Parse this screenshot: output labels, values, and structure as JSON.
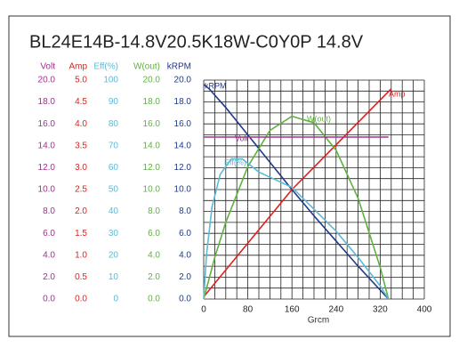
{
  "chart_data": {
    "type": "line",
    "title": "BL24E14B-14.8V20.5K18W-C0Y0P   14.8V",
    "x_label": "Grcm",
    "xlim": [
      0,
      400
    ],
    "xticks": [
      0,
      80,
      160,
      240,
      320,
      400
    ],
    "xgrid": [
      0,
      20,
      40,
      60,
      80,
      100,
      120,
      140,
      160,
      180,
      200,
      220,
      240,
      260,
      280,
      300,
      320,
      340,
      360,
      380,
      400
    ],
    "ygrid": [
      0,
      1,
      2,
      3,
      4,
      5,
      6,
      7,
      8,
      9,
      10,
      11,
      12,
      13,
      14,
      15,
      16,
      17,
      18,
      19,
      20
    ],
    "axes": [
      {
        "label": "Volt",
        "color": "#a0308f",
        "ylim": [
          0,
          20
        ],
        "yticks": [
          {
            "value": 0,
            "label": "0.0"
          },
          {
            "value": 2,
            "label": "2.0"
          },
          {
            "value": 4,
            "label": "4.0"
          },
          {
            "value": 6,
            "label": "6.0"
          },
          {
            "value": 8,
            "label": "8.0"
          },
          {
            "value": 10,
            "label": "10.0"
          },
          {
            "value": 12,
            "label": "12.0"
          },
          {
            "value": 14,
            "label": "14.0"
          },
          {
            "value": 16,
            "label": "16.0"
          },
          {
            "value": 18,
            "label": "18.0"
          },
          {
            "value": 20,
            "label": "20.0"
          }
        ]
      },
      {
        "label": "Amp",
        "color": "#e0201e",
        "ylim": [
          0,
          5
        ],
        "yticks": [
          {
            "value": 0,
            "label": "0.0"
          },
          0.5,
          {
            "value": 1,
            "label": "1.0"
          },
          1.5,
          {
            "value": 2,
            "label": "2.0"
          },
          2.5,
          {
            "value": 3,
            "label": "3.0"
          },
          3.5,
          {
            "value": 4,
            "label": "4.0"
          },
          4.5,
          {
            "value": 5,
            "label": "5.0"
          }
        ]
      },
      {
        "label": "Eff(%)",
        "color": "#5bbad6",
        "ylim": [
          0,
          100
        ],
        "yticks": [
          0,
          10,
          20,
          30,
          40,
          50,
          60,
          70,
          80,
          90,
          100
        ]
      },
      {
        "label": "W(out)",
        "color": "#5db33c",
        "ylim": [
          0,
          20
        ],
        "yticks": [
          {
            "value": 0,
            "label": "0.0"
          },
          {
            "value": 2,
            "label": "2.0"
          },
          {
            "value": 4,
            "label": "4.0"
          },
          {
            "value": 6,
            "label": "6.0"
          },
          {
            "value": 8,
            "label": "8.0"
          },
          {
            "value": 10,
            "label": "10.0"
          },
          {
            "value": 12,
            "label": "12.0"
          },
          {
            "value": 14,
            "label": "14.0"
          },
          {
            "value": 16,
            "label": "16.0"
          },
          {
            "value": 18,
            "label": "18.0"
          },
          {
            "value": 20,
            "label": "20.0"
          }
        ]
      },
      {
        "label": "kRPM",
        "color": "#1f3a8a",
        "ylim": [
          0,
          20
        ],
        "yticks": [
          {
            "value": 0,
            "label": "0.0"
          },
          {
            "value": 2,
            "label": "2.0"
          },
          {
            "value": 4,
            "label": "4.0"
          },
          {
            "value": 6,
            "label": "6.0"
          },
          {
            "value": 8,
            "label": "8.0"
          },
          {
            "value": 10,
            "label": "10.0"
          },
          {
            "value": 12,
            "label": "12.0"
          },
          {
            "value": 14,
            "label": "14.0"
          },
          {
            "value": 16,
            "label": "16.0"
          },
          {
            "value": 18,
            "label": "18.0"
          },
          {
            "value": 20,
            "label": "20.0"
          }
        ]
      }
    ],
    "series": [
      {
        "name": "kRPM",
        "axis": 4,
        "color": "#1f3a8a",
        "x": [
          0,
          10,
          40,
          80,
          120,
          160,
          200,
          240,
          280,
          335
        ],
        "values": [
          19.6,
          19.2,
          17.5,
          15,
          12.5,
          10,
          7.6,
          5.3,
          3,
          0
        ]
      },
      {
        "name": "Amp",
        "axis": 1,
        "color": "#e0201e",
        "x": [
          0,
          160,
          340
        ],
        "values": [
          0.05,
          2.5,
          4.8
        ]
      },
      {
        "name": "W(out)",
        "axis": 3,
        "color": "#5db33c",
        "x": [
          0,
          20,
          40,
          80,
          120,
          160,
          200,
          240,
          280,
          320,
          335
        ],
        "values": [
          0,
          3.8,
          7,
          12.1,
          15.4,
          16.7,
          16.1,
          13.6,
          9.2,
          2.9,
          0
        ]
      },
      {
        "name": "Volt",
        "axis": 0,
        "color": "#a0308f",
        "x": [
          0,
          335
        ],
        "values": [
          14.8,
          14.8
        ]
      },
      {
        "name": "Eff(%)",
        "axis": 2,
        "color": "#5bbad6",
        "x": [
          0,
          5,
          15,
          30,
          50,
          70,
          100,
          160,
          200,
          240,
          280,
          320,
          335
        ],
        "values": [
          0,
          20,
          42,
          57,
          64,
          64,
          58,
          51,
          41,
          31,
          19,
          6,
          0
        ]
      }
    ]
  }
}
